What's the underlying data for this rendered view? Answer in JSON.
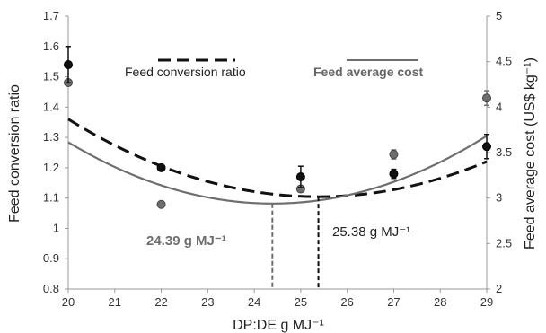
{
  "chart_data": {
    "type": "scatter",
    "xlabel": "DP:DE g MJ⁻¹",
    "ylabel_left": "Feed conversion ratio",
    "ylabel_right": "Feed average cost (US$ kg⁻¹)",
    "x_ticks": [
      "20",
      "21",
      "22",
      "23",
      "24",
      "25",
      "26",
      "27",
      "28",
      "29"
    ],
    "y_left_ticks": [
      "0.8",
      "0.9",
      "1",
      "1.1",
      "1.2",
      "1.3",
      "1.4",
      "1.5",
      "1.6",
      "1.7"
    ],
    "y_right_ticks": [
      "2",
      "2.5",
      "3",
      "3.5",
      "4",
      "4.5",
      "5"
    ],
    "xlim": [
      20,
      29
    ],
    "ylim_left": [
      0.8,
      1.7
    ],
    "ylim_right": [
      2,
      5
    ],
    "grid": false,
    "legend_position": "top",
    "series": [
      {
        "name": "Feed conversion ratio",
        "axis": "left",
        "color": "#111111",
        "line_style": "dashed",
        "x": [
          20,
          22,
          25,
          27,
          29
        ],
        "y": [
          1.54,
          1.2,
          1.17,
          1.18,
          1.27
        ],
        "err": [
          0.06,
          0.01,
          0.035,
          0.015,
          0.04
        ],
        "fit": {
          "a": 0.008846,
          "b": -0.449004,
          "c": 6.802
        }
      },
      {
        "name": "Feed average cost",
        "axis": "right",
        "color": "#6e6e6e",
        "line_style": "solid",
        "x": [
          20,
          22,
          25,
          27,
          29
        ],
        "y": [
          4.27,
          2.93,
          3.1,
          3.48,
          4.1
        ],
        "err": [
          0,
          0,
          0,
          0.05,
          0.08
        ],
        "fit": {
          "a": 0.035,
          "b": -1.7073,
          "c": 23.76
        }
      }
    ],
    "annotations": [
      {
        "text": "24.39 g MJ⁻¹",
        "color": "#6e6e6e",
        "x": 24.39
      },
      {
        "text": "25.38 g MJ⁻¹",
        "color": "#111111",
        "x": 25.38
      }
    ]
  }
}
